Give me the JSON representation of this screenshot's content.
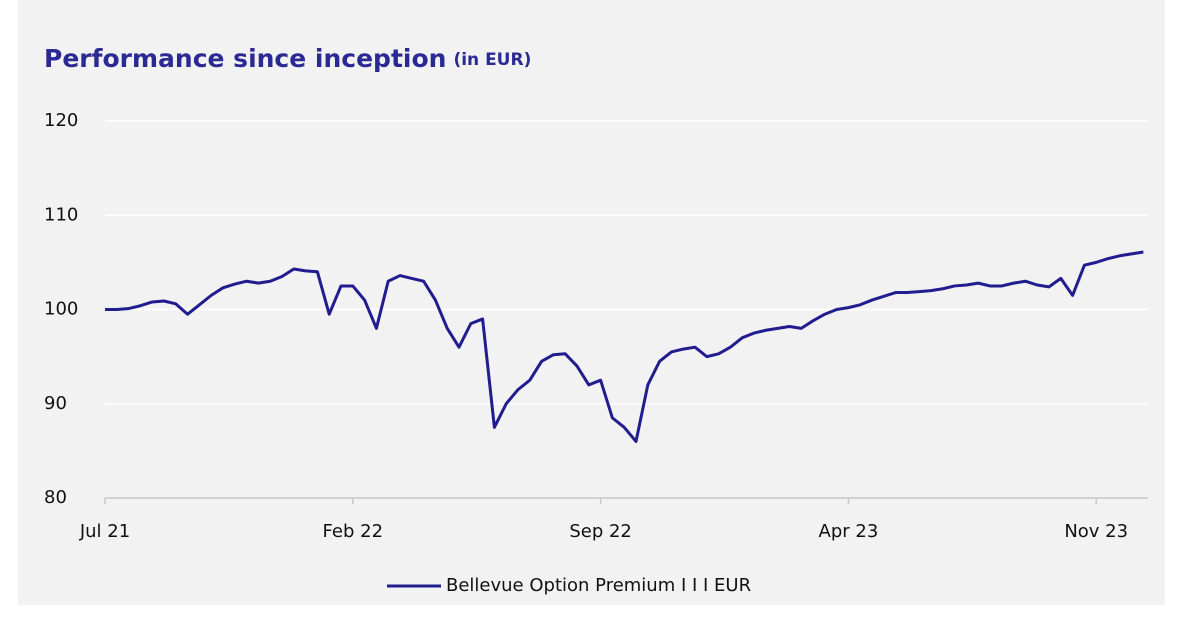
{
  "chart_data": {
    "type": "line",
    "title": "Performance since inception",
    "subtitle": "(in EUR)",
    "categories": [
      "Jul 21",
      null,
      null,
      null,
      null,
      null,
      null,
      null,
      null,
      null,
      null,
      null,
      null,
      null,
      null,
      null,
      null,
      null,
      null,
      null,
      null,
      "Feb 22",
      null,
      null,
      null,
      null,
      null,
      null,
      null,
      null,
      null,
      null,
      null,
      null,
      null,
      null,
      null,
      null,
      null,
      null,
      null,
      null,
      "Sep 22",
      null,
      null,
      null,
      null,
      null,
      null,
      null,
      null,
      null,
      null,
      null,
      null,
      null,
      null,
      null,
      null,
      null,
      null,
      null,
      null,
      "Apr 23",
      null,
      null,
      null,
      null,
      null,
      null,
      null,
      null,
      null,
      null,
      null,
      null,
      null,
      null,
      null,
      null,
      null,
      null,
      null,
      null,
      "Nov 23",
      null,
      null,
      null,
      null
    ],
    "series": [
      {
        "name": "Bellevue Option Premium I I I EUR",
        "color": "#211d8f",
        "values": [
          100,
          100,
          100.1,
          100.4,
          100.8,
          100.9,
          100.6,
          99.5,
          100.5,
          101.5,
          102.3,
          102.7,
          103,
          102.8,
          103,
          103.5,
          104.3,
          104.1,
          104,
          99.5,
          102.5,
          102.5,
          101,
          98,
          103,
          103.6,
          103.3,
          103,
          101,
          98,
          96,
          98.5,
          99,
          87.5,
          90,
          91.5,
          92.5,
          94.5,
          95.2,
          95.3,
          94,
          92,
          92.5,
          88.5,
          87.5,
          86,
          92,
          94.5,
          95.5,
          95.8,
          96,
          95,
          95.3,
          96,
          97,
          97.5,
          97.8,
          98,
          98.2,
          98,
          98.8,
          99.5,
          100,
          100.2,
          100.5,
          101,
          101.4,
          101.8,
          101.8,
          101.9,
          102,
          102.2,
          102.5,
          102.6,
          102.8,
          102.5,
          102.5,
          102.8,
          103,
          102.6,
          102.4,
          103.3,
          101.5,
          104.7,
          105,
          105.4,
          105.7,
          105.9,
          106.1
        ]
      }
    ],
    "ylim": [
      80,
      120
    ],
    "yticks": [
      80,
      90,
      100,
      110,
      120
    ],
    "grid": true,
    "legend": "bottom"
  }
}
